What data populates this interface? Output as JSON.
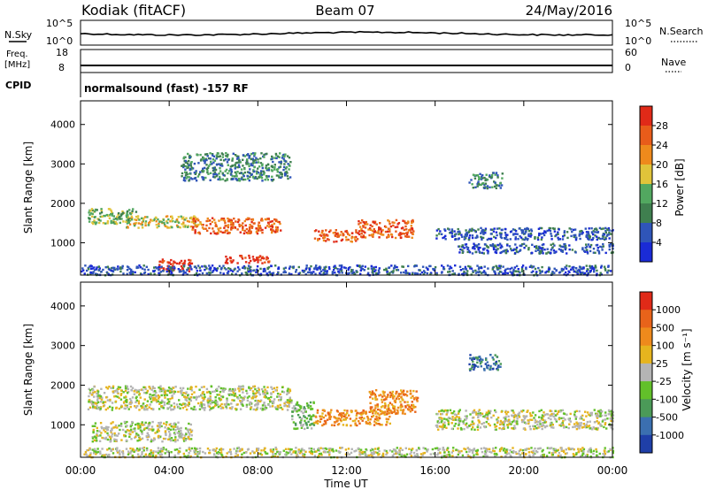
{
  "header": {
    "station": "Kodiak (fitACF)",
    "beam": "Beam 07",
    "date": "24/May/2016"
  },
  "status_panels": {
    "nsky_label": "N.Sky",
    "nsearch_label": "N.Search",
    "nsky_ticks": [
      "10^5",
      "10^0"
    ],
    "nsearch_ticks": [
      "10^5",
      "10^0"
    ],
    "freq_label": "Freq.",
    "freq_unit": "[MHz]",
    "freq_ticks": [
      "18",
      "8"
    ],
    "nave_label": "Nave",
    "nave_ticks": [
      "60",
      "0"
    ],
    "cpid_label": "CPID",
    "cpid_text": "normalsound (fast) -157 RF"
  },
  "colors": {
    "power_scale": [
      "#1a2bd6",
      "#2f55b8",
      "#3f7f4f",
      "#52a860",
      "#e0c43a",
      "#ee8a1c",
      "#e85c1a",
      "#e02a18"
    ],
    "velocity_scale": [
      "#1f3fa8",
      "#3b6fb0",
      "#4b9a58",
      "#62c02a",
      "#b4b4b4",
      "#e6b41e",
      "#ee8a1c",
      "#e8631a",
      "#e02a18"
    ]
  },
  "chart_data": [
    {
      "type": "heatmap",
      "name": "power",
      "xlabel": "",
      "ylabel": "Slant Range [km]",
      "x_ticks": [
        "00:00",
        "04:00",
        "08:00",
        "12:00",
        "16:00",
        "20:00",
        "00:00"
      ],
      "y_ticks": [
        "1000",
        "2000",
        "3000",
        "4000"
      ],
      "ylim": [
        180,
        4600
      ],
      "colorbar": {
        "label": "Power [dB]",
        "ticks": [
          "4",
          "8",
          "12",
          "16",
          "20",
          "24",
          "28"
        ]
      },
      "echo_bands": [
        {
          "t": [
            0.3,
            2.5
          ],
          "r": [
            1500,
            1900
          ],
          "level": 3
        },
        {
          "t": [
            2.0,
            5.5
          ],
          "r": [
            1400,
            1700
          ],
          "level": 4
        },
        {
          "t": [
            5.0,
            9.0
          ],
          "r": [
            1250,
            1650
          ],
          "level": 6
        },
        {
          "t": [
            3.5,
            5.0
          ],
          "r": [
            300,
            600
          ],
          "level": 7
        },
        {
          "t": [
            6.5,
            8.5
          ],
          "r": [
            500,
            700
          ],
          "level": 7
        },
        {
          "t": [
            10.5,
            12.5
          ],
          "r": [
            1050,
            1350
          ],
          "level": 6
        },
        {
          "t": [
            12.5,
            15.0
          ],
          "r": [
            1150,
            1600
          ],
          "level": 6
        },
        {
          "t": [
            16.0,
            24.0
          ],
          "r": [
            1100,
            1400
          ],
          "level": 1
        },
        {
          "t": [
            17.0,
            24.0
          ],
          "r": [
            750,
            1000
          ],
          "level": 1
        },
        {
          "t": [
            4.5,
            9.5
          ],
          "r": [
            2600,
            3300
          ],
          "level": 2
        },
        {
          "t": [
            17.5,
            19.0
          ],
          "r": [
            2400,
            2800
          ],
          "level": 2
        },
        {
          "t": [
            0.0,
            24.0
          ],
          "r": [
            200,
            450
          ],
          "level": 1
        }
      ]
    },
    {
      "type": "heatmap",
      "name": "velocity",
      "xlabel": "Time UT",
      "ylabel": "Slant Range [km]",
      "x_ticks": [
        "00:00",
        "04:00",
        "08:00",
        "12:00",
        "16:00",
        "20:00",
        "00:00"
      ],
      "y_ticks": [
        "1000",
        "2000",
        "3000",
        "4000"
      ],
      "ylim": [
        180,
        4600
      ],
      "colorbar": {
        "label": "Velocity [m s⁻¹]",
        "ticks": [
          "1000",
          "500",
          "100",
          "25",
          "-25",
          "-100",
          "-500",
          "-1000"
        ]
      },
      "echo_bands": [
        {
          "t": [
            0.3,
            9.5
          ],
          "r": [
            1400,
            2000
          ],
          "level": 4
        },
        {
          "t": [
            0.5,
            5.0
          ],
          "r": [
            600,
            1100
          ],
          "level": 4
        },
        {
          "t": [
            9.5,
            10.5
          ],
          "r": [
            900,
            1600
          ],
          "level": 3
        },
        {
          "t": [
            10.5,
            14.0
          ],
          "r": [
            1000,
            1400
          ],
          "level": 6
        },
        {
          "t": [
            13.0,
            15.2
          ],
          "r": [
            1300,
            1900
          ],
          "level": 6
        },
        {
          "t": [
            16.0,
            24.0
          ],
          "r": [
            900,
            1400
          ],
          "level": 4
        },
        {
          "t": [
            17.5,
            19.0
          ],
          "r": [
            2400,
            2800
          ],
          "level": 1
        },
        {
          "t": [
            0.0,
            24.0
          ],
          "r": [
            200,
            450
          ],
          "level": 4
        }
      ]
    }
  ]
}
